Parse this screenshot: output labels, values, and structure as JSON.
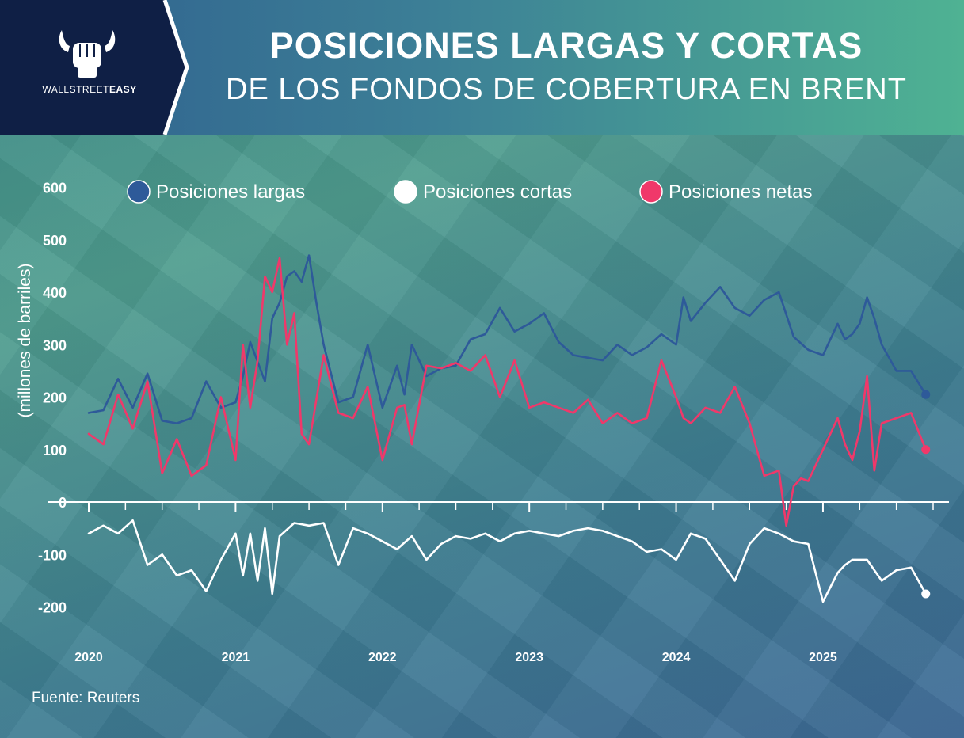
{
  "brand": {
    "name_light": "WALLSTREET",
    "name_bold": "EASY"
  },
  "title": {
    "line1": "POSICIONES LARGAS Y CORTAS",
    "line2": "DE LOS FONDOS DE COBERTURA EN BRENT"
  },
  "source": "Fuente: Reuters",
  "colors": {
    "largas": "#2e5a99",
    "cortas": "#ffffff",
    "netas": "#f0386a",
    "header_dark": "#0f1f45"
  },
  "chart_data": {
    "type": "line",
    "ylabel": "(millones de barriles)",
    "ylim": [
      -200,
      600
    ],
    "yticks": [
      600,
      500,
      400,
      300,
      200,
      100,
      0,
      -100,
      -200
    ],
    "xticks": [
      "2020",
      "2021",
      "2022",
      "2023",
      "2024",
      "2025"
    ],
    "xlim": [
      2020.0,
      2025.75
    ],
    "legend_position": "top",
    "series": [
      {
        "name": "Posiciones largas",
        "color": "#2e5a99",
        "x": [
          2020.0,
          2020.1,
          2020.2,
          2020.3,
          2020.4,
          2020.5,
          2020.6,
          2020.7,
          2020.8,
          2020.9,
          2021.0,
          2021.05,
          2021.1,
          2021.2,
          2021.25,
          2021.3,
          2021.35,
          2021.4,
          2021.45,
          2021.5,
          2021.55,
          2021.6,
          2021.7,
          2021.8,
          2021.9,
          2022.0,
          2022.1,
          2022.15,
          2022.2,
          2022.3,
          2022.4,
          2022.5,
          2022.6,
          2022.7,
          2022.8,
          2022.9,
          2023.0,
          2023.1,
          2023.2,
          2023.3,
          2023.4,
          2023.5,
          2023.6,
          2023.7,
          2023.8,
          2023.9,
          2024.0,
          2024.05,
          2024.1,
          2024.2,
          2024.3,
          2024.4,
          2024.5,
          2024.6,
          2024.7,
          2024.8,
          2024.9,
          2025.0,
          2025.1,
          2025.15,
          2025.2,
          2025.25,
          2025.3,
          2025.35,
          2025.4,
          2025.5,
          2025.6,
          2025.7
        ],
        "values": [
          170,
          175,
          235,
          180,
          245,
          155,
          150,
          160,
          230,
          180,
          190,
          240,
          305,
          230,
          350,
          380,
          430,
          440,
          420,
          470,
          380,
          300,
          190,
          200,
          300,
          180,
          260,
          205,
          300,
          240,
          255,
          260,
          310,
          320,
          370,
          325,
          340,
          360,
          305,
          280,
          275,
          270,
          300,
          280,
          295,
          320,
          300,
          390,
          345,
          380,
          410,
          370,
          355,
          385,
          400,
          315,
          290,
          280,
          340,
          310,
          320,
          340,
          390,
          350,
          300,
          250,
          250,
          205
        ]
      },
      {
        "name": "Posiciones cortas",
        "color": "#ffffff",
        "x": [
          2020.0,
          2020.1,
          2020.2,
          2020.3,
          2020.4,
          2020.5,
          2020.6,
          2020.7,
          2020.8,
          2020.9,
          2021.0,
          2021.05,
          2021.1,
          2021.15,
          2021.2,
          2021.25,
          2021.3,
          2021.4,
          2021.5,
          2021.6,
          2021.7,
          2021.8,
          2021.9,
          2022.0,
          2022.1,
          2022.2,
          2022.3,
          2022.4,
          2022.5,
          2022.6,
          2022.7,
          2022.8,
          2022.9,
          2023.0,
          2023.1,
          2023.2,
          2023.3,
          2023.4,
          2023.5,
          2023.6,
          2023.7,
          2023.8,
          2023.9,
          2024.0,
          2024.1,
          2024.2,
          2024.3,
          2024.4,
          2024.5,
          2024.6,
          2024.7,
          2024.8,
          2024.9,
          2025.0,
          2025.1,
          2025.15,
          2025.2,
          2025.3,
          2025.4,
          2025.5,
          2025.6,
          2025.7
        ],
        "values": [
          -60,
          -45,
          -60,
          -35,
          -120,
          -100,
          -140,
          -130,
          -170,
          -110,
          -60,
          -140,
          -60,
          -150,
          -50,
          -175,
          -65,
          -40,
          -45,
          -40,
          -120,
          -50,
          -60,
          -75,
          -90,
          -65,
          -110,
          -80,
          -65,
          -70,
          -60,
          -75,
          -60,
          -55,
          -60,
          -65,
          -55,
          -50,
          -55,
          -65,
          -75,
          -95,
          -90,
          -110,
          -60,
          -70,
          -110,
          -150,
          -80,
          -50,
          -60,
          -75,
          -80,
          -190,
          -135,
          -120,
          -110,
          -110,
          -150,
          -130,
          -125,
          -175
        ]
      },
      {
        "name": "Posiciones netas",
        "color": "#f0386a",
        "x": [
          2020.0,
          2020.1,
          2020.2,
          2020.3,
          2020.4,
          2020.5,
          2020.6,
          2020.7,
          2020.8,
          2020.9,
          2021.0,
          2021.05,
          2021.1,
          2021.15,
          2021.2,
          2021.25,
          2021.3,
          2021.35,
          2021.4,
          2021.45,
          2021.5,
          2021.6,
          2021.7,
          2021.8,
          2021.9,
          2022.0,
          2022.1,
          2022.15,
          2022.2,
          2022.3,
          2022.4,
          2022.5,
          2022.6,
          2022.7,
          2022.8,
          2022.9,
          2023.0,
          2023.1,
          2023.2,
          2023.3,
          2023.4,
          2023.5,
          2023.6,
          2023.7,
          2023.8,
          2023.9,
          2024.0,
          2024.05,
          2024.1,
          2024.2,
          2024.3,
          2024.4,
          2024.5,
          2024.55,
          2024.6,
          2024.7,
          2024.75,
          2024.8,
          2024.85,
          2024.9,
          2025.0,
          2025.1,
          2025.15,
          2025.2,
          2025.25,
          2025.3,
          2025.35,
          2025.4,
          2025.5,
          2025.6,
          2025.7
        ],
        "values": [
          130,
          110,
          205,
          140,
          230,
          55,
          120,
          50,
          70,
          200,
          80,
          300,
          180,
          270,
          430,
          400,
          465,
          300,
          360,
          130,
          110,
          280,
          170,
          160,
          220,
          80,
          180,
          185,
          110,
          260,
          255,
          265,
          250,
          280,
          200,
          270,
          180,
          190,
          180,
          170,
          195,
          150,
          170,
          150,
          160,
          270,
          200,
          160,
          150,
          180,
          170,
          220,
          150,
          100,
          50,
          60,
          -45,
          30,
          45,
          40,
          100,
          160,
          110,
          80,
          135,
          240,
          60,
          150,
          160,
          170,
          100
        ]
      }
    ]
  }
}
